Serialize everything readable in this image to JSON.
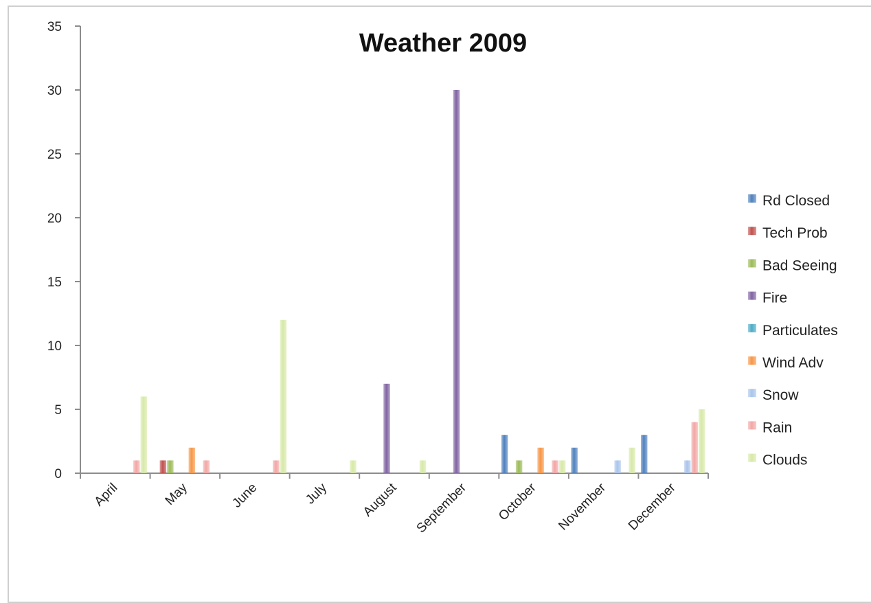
{
  "chart_data": {
    "type": "bar",
    "title": "Weather 2009",
    "xlabel": "",
    "ylabel": "",
    "ylim": [
      0,
      35
    ],
    "yticks": [
      0,
      5,
      10,
      15,
      20,
      25,
      30,
      35
    ],
    "grid": false,
    "legend_position": "right",
    "categories": [
      "April",
      "May",
      "June",
      "July",
      "August",
      "September",
      "October",
      "November",
      "December"
    ],
    "series": [
      {
        "name": "Rd Closed",
        "color": "#4f81bd",
        "values": [
          0,
          0,
          0,
          0,
          0,
          0,
          3,
          2,
          3
        ]
      },
      {
        "name": "Tech Prob",
        "color": "#c0504d",
        "values": [
          0,
          1,
          0,
          0,
          0,
          0,
          0,
          0,
          0
        ]
      },
      {
        "name": "Bad Seeing",
        "color": "#9bbb59",
        "values": [
          0,
          1,
          0,
          0,
          0,
          0,
          1,
          0,
          0
        ]
      },
      {
        "name": "Fire",
        "color": "#8064a2",
        "values": [
          0,
          0,
          0,
          0,
          7,
          30,
          0,
          0,
          0
        ]
      },
      {
        "name": "Particulates",
        "color": "#4bacc6",
        "values": [
          0,
          0,
          0,
          0,
          0,
          0,
          0,
          0,
          0
        ]
      },
      {
        "name": "Wind Adv",
        "color": "#f79646",
        "values": [
          0,
          2,
          0,
          0,
          0,
          0,
          2,
          0,
          0
        ]
      },
      {
        "name": "Snow",
        "color": "#a9c4eb",
        "values": [
          0,
          0,
          0,
          0,
          0,
          0,
          0,
          1,
          1
        ]
      },
      {
        "name": "Rain",
        "color": "#f2a7a5",
        "values": [
          1,
          1,
          1,
          0,
          0,
          0,
          1,
          0,
          4
        ]
      },
      {
        "name": "Clouds",
        "color": "#d7e9a8",
        "values": [
          6,
          0,
          12,
          1,
          1,
          0,
          1,
          2,
          5
        ]
      }
    ]
  }
}
